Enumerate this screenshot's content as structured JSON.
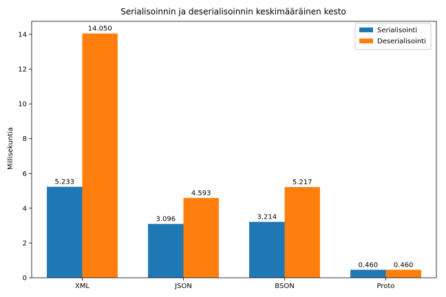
{
  "chart_data": {
    "type": "bar",
    "title": "Serialisoinnin ja deserialisoinnin keskimääräinen kesto",
    "xlabel": "",
    "ylabel": "Millisekuntia",
    "categories": [
      "XML",
      "JSON",
      "BSON",
      "Proto"
    ],
    "series": [
      {
        "name": "Serialisointi",
        "color": "#1f77b4",
        "values": [
          5.233,
          3.096,
          3.214,
          0.46
        ],
        "labels": [
          "5.233",
          "3.096",
          "3.214",
          "0.460"
        ]
      },
      {
        "name": "Deserialisointi",
        "color": "#ff7f0e",
        "values": [
          14.05,
          4.593,
          5.217,
          0.46
        ],
        "labels": [
          "14.050",
          "4.593",
          "5.217",
          "0.460"
        ]
      }
    ],
    "ylim": [
      0,
      14.75
    ],
    "yticks": [
      0,
      2,
      4,
      6,
      8,
      10,
      12,
      14
    ],
    "ytick_labels": [
      "0",
      "2",
      "4",
      "6",
      "8",
      "10",
      "12",
      "14"
    ],
    "legend_position": "top-right",
    "grid": false
  }
}
